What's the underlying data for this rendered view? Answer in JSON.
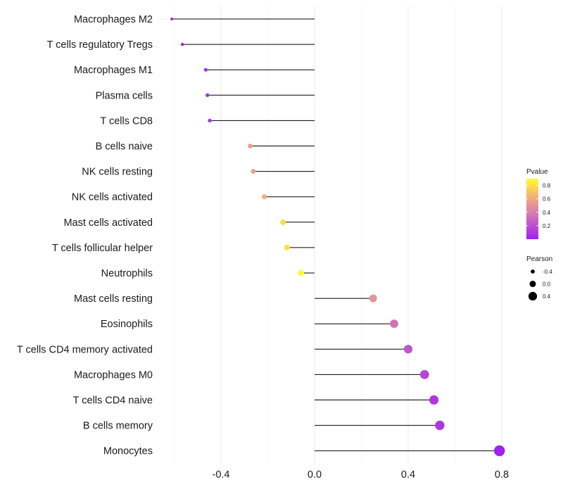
{
  "chart_data": {
    "type": "lollipop",
    "title": "",
    "xlabel": "",
    "ylabel": "",
    "xlim": [
      -0.62,
      0.82
    ],
    "x_ticks": [
      -0.4,
      0.0,
      0.4,
      0.8
    ],
    "x_tick_labels": [
      "-0.4",
      "0.0",
      "0.4",
      "0.8"
    ],
    "grid": true,
    "categories": [
      "Macrophages M2",
      "T cells regulatory  Tregs",
      "Macrophages M1",
      "Plasma cells",
      "T cells CD8",
      "B cells naive",
      "NK cells resting",
      "NK cells activated",
      "Mast cells activated",
      "T cells follicular helper",
      "Neutrophils",
      "Mast cells resting",
      "Eosinophils",
      "T cells CD4 memory activated",
      "Macrophages M0",
      "T cells CD4 naive",
      "B cells memory",
      "Monocytes"
    ],
    "pearson": [
      -0.61,
      -0.565,
      -0.465,
      -0.458,
      -0.448,
      -0.275,
      -0.262,
      -0.215,
      -0.135,
      -0.118,
      -0.058,
      0.25,
      0.34,
      0.4,
      0.47,
      0.51,
      0.535,
      0.79
    ],
    "pvalue": [
      0.006,
      0.01,
      0.05,
      0.058,
      0.07,
      0.55,
      0.58,
      0.66,
      0.8,
      0.82,
      0.93,
      0.5,
      0.34,
      0.22,
      0.15,
      0.1,
      0.09,
      0.002
    ],
    "legend_pvalue": {
      "title": "Pvalue",
      "ticks": [
        0.8,
        0.6,
        0.4,
        0.2
      ],
      "tick_labels": [
        "0.8",
        "0.6",
        "0.4",
        "0.2"
      ],
      "range": [
        0.0,
        0.9
      ],
      "colors": [
        "#a020f0",
        "#e8a090",
        "#ffff20"
      ],
      "position": "right"
    },
    "legend_pearson": {
      "title": "Pearson",
      "values": [
        -0.4,
        0.0,
        0.4
      ],
      "labels": [
        "-0.4",
        "0.0",
        "0.4"
      ],
      "position": "right"
    }
  }
}
